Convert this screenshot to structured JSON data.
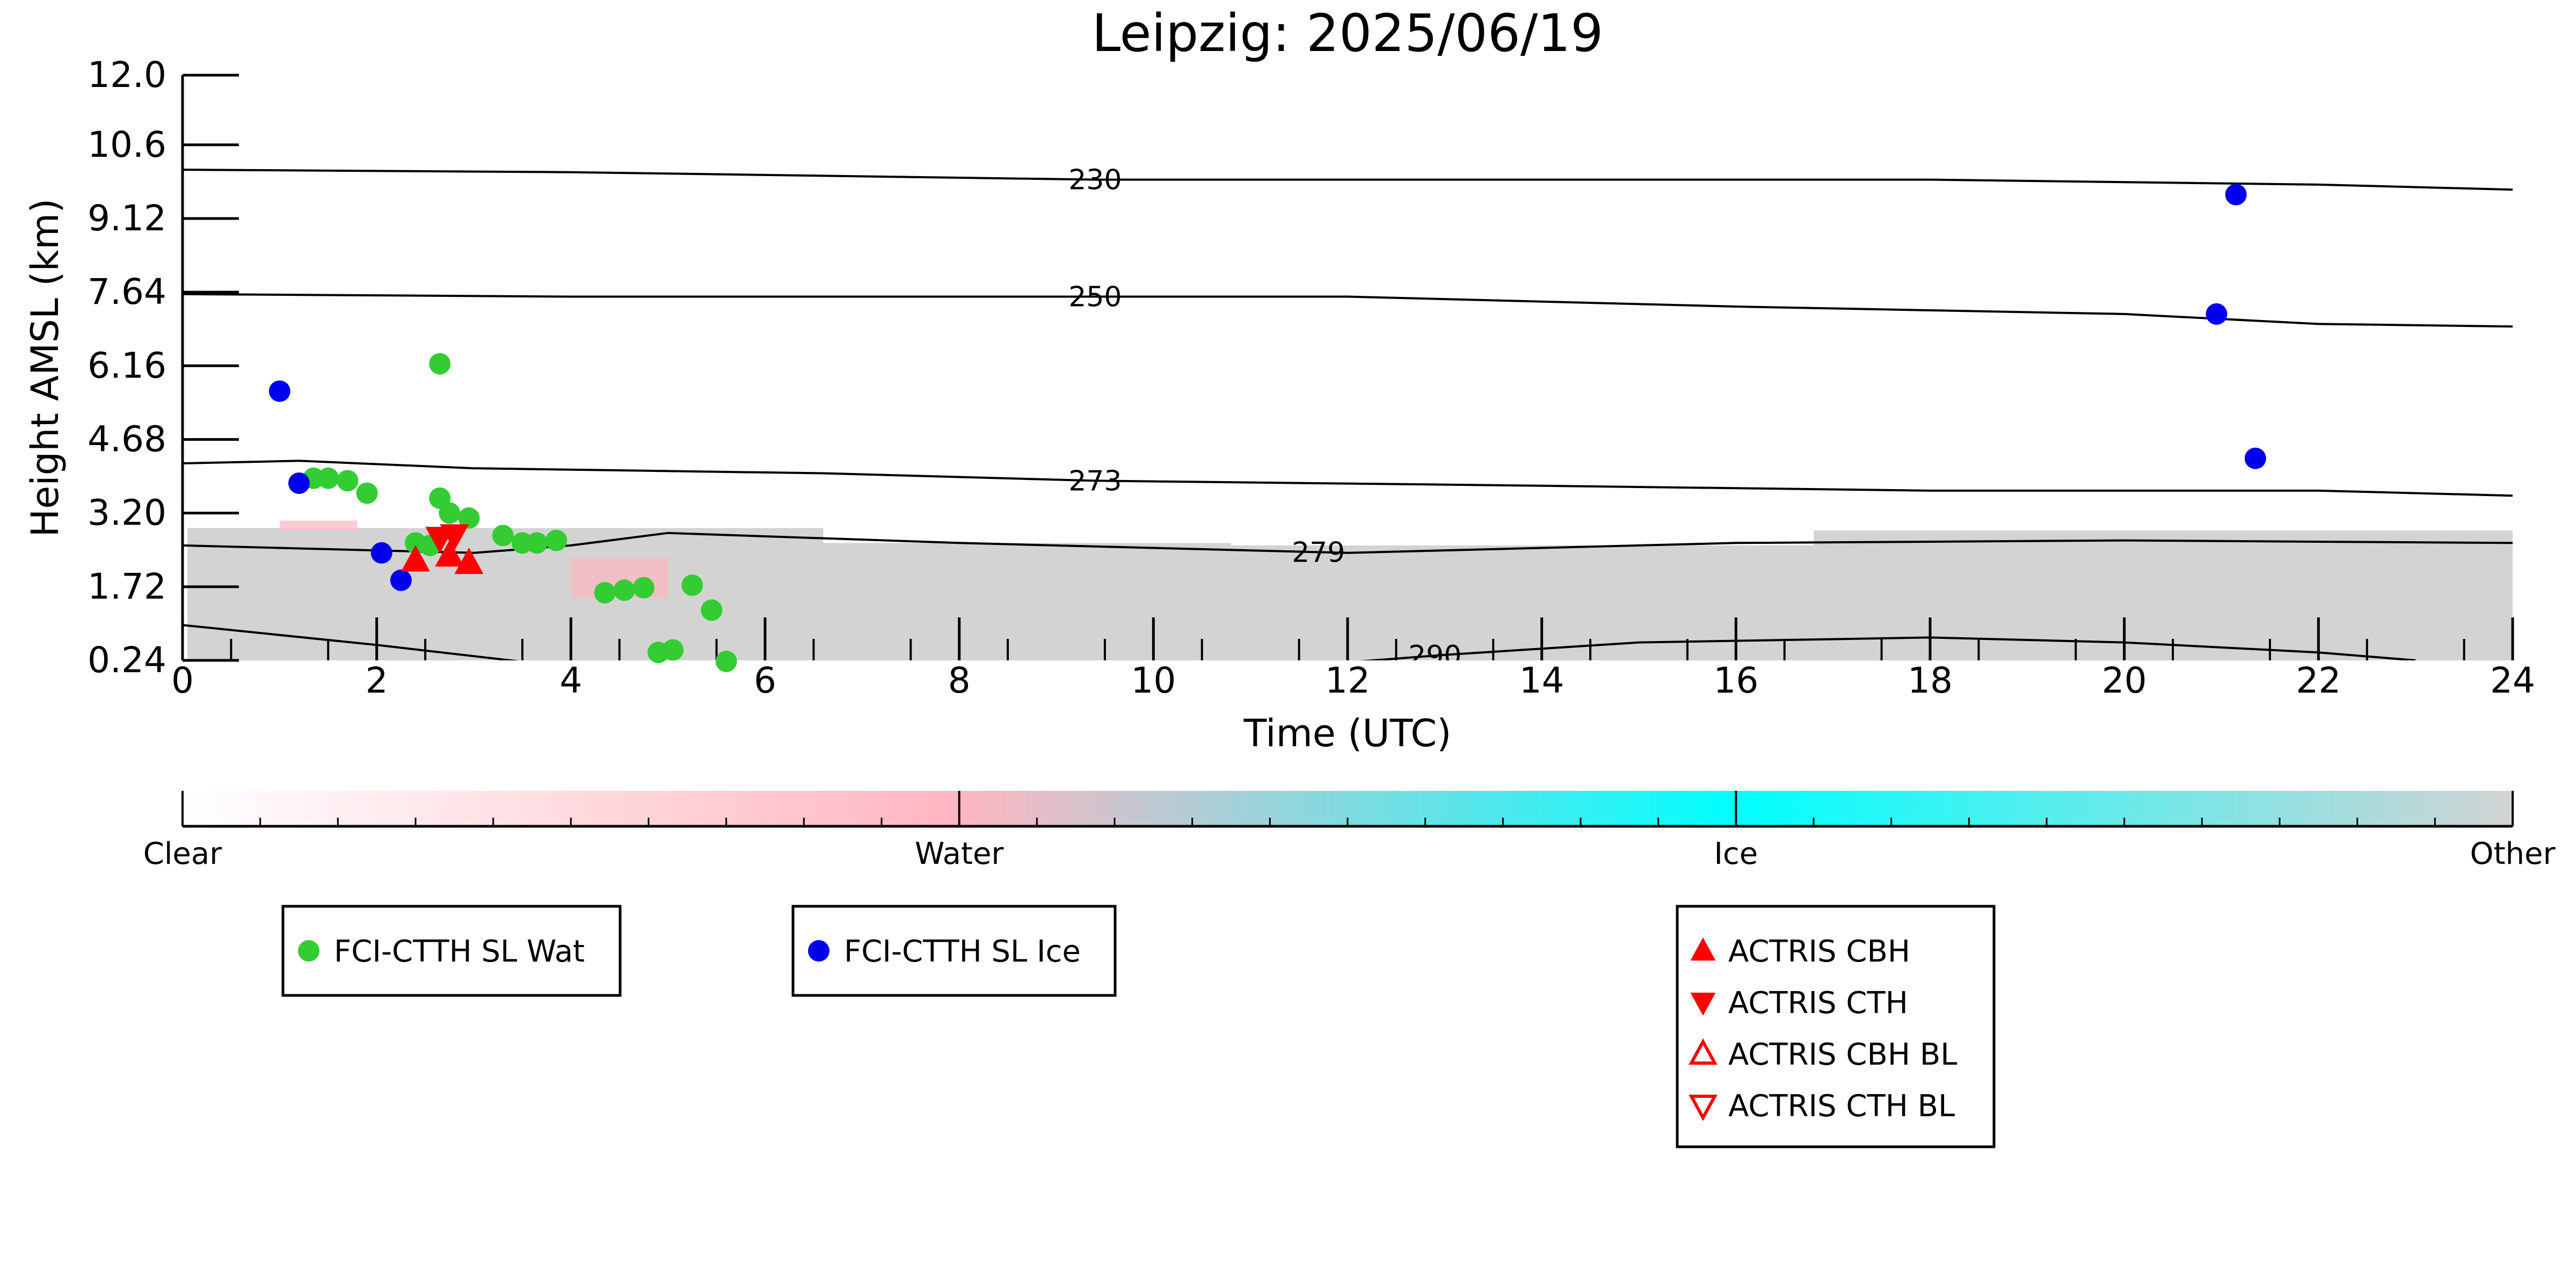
{
  "chart_data": {
    "type": "scatter",
    "title": "Leipzig: 2025/06/19",
    "xlabel": "Time (UTC)",
    "ylabel": "Height AMSL (km)",
    "xlim": [
      0,
      24
    ],
    "ylim": [
      0.24,
      12.0
    ],
    "xticks": [
      0,
      2,
      4,
      6,
      8,
      10,
      12,
      14,
      16,
      18,
      20,
      22,
      24
    ],
    "yticks": [
      0.24,
      1.72,
      3.2,
      4.68,
      6.16,
      7.64,
      9.12,
      10.6,
      12.0
    ],
    "ytick_labels": [
      "0.24",
      "1.72",
      "3.20",
      "4.68",
      "6.16",
      "7.64",
      "9.12",
      "10.6",
      "12.0"
    ],
    "temperature_contours": [
      {
        "label": "230",
        "points": [
          [
            0,
            10.1
          ],
          [
            4,
            10.05
          ],
          [
            9.4,
            9.9
          ],
          [
            14,
            9.9
          ],
          [
            18,
            9.9
          ],
          [
            22,
            9.8
          ],
          [
            24,
            9.7
          ]
        ]
      },
      {
        "label": "250",
        "points": [
          [
            0,
            7.6
          ],
          [
            4,
            7.55
          ],
          [
            9.4,
            7.55
          ],
          [
            12,
            7.55
          ],
          [
            16,
            7.35
          ],
          [
            20,
            7.2
          ],
          [
            22,
            7.0
          ],
          [
            24,
            6.95
          ]
        ]
      },
      {
        "label": "273",
        "points": [
          [
            0,
            4.2
          ],
          [
            1.2,
            4.25
          ],
          [
            3,
            4.1
          ],
          [
            6.6,
            4.0
          ],
          [
            9.4,
            3.85
          ],
          [
            14,
            3.75
          ],
          [
            18,
            3.65
          ],
          [
            22,
            3.65
          ],
          [
            24,
            3.55
          ]
        ]
      },
      {
        "label": "279",
        "points": [
          [
            0,
            2.55
          ],
          [
            2,
            2.45
          ],
          [
            3,
            2.4
          ],
          [
            4,
            2.55
          ],
          [
            5,
            2.8
          ],
          [
            8,
            2.6
          ],
          [
            12,
            2.4
          ],
          [
            16,
            2.6
          ],
          [
            20,
            2.65
          ],
          [
            24,
            2.6
          ]
        ]
      },
      {
        "label": "290",
        "points": [
          [
            0,
            0.95
          ],
          [
            2,
            0.55
          ],
          [
            4,
            0.1
          ],
          [
            10,
            0.05
          ],
          [
            12,
            0.2
          ],
          [
            13,
            0.35
          ],
          [
            15,
            0.6
          ],
          [
            18,
            0.7
          ],
          [
            20,
            0.6
          ],
          [
            22,
            0.4
          ],
          [
            23,
            0.24
          ]
        ]
      }
    ],
    "cloud_mask_other": [
      {
        "x0": 0.05,
        "x1": 6.6,
        "ytop": 2.9
      },
      {
        "x0": 6.6,
        "x1": 10.8,
        "ytop": 2.6
      },
      {
        "x0": 10.8,
        "x1": 16.8,
        "ytop": 2.55
      },
      {
        "x0": 16.8,
        "x1": 24,
        "ytop": 2.85
      }
    ],
    "colorbar": {
      "labels": [
        "Clear",
        "Water",
        "Ice",
        "Other"
      ],
      "colors": [
        "#ffffff",
        "#ffb6c1",
        "#00ffff",
        "#d3d3d3"
      ]
    },
    "series": [
      {
        "name": "FCI-CTTH SL Wat",
        "color": "#33cc33",
        "marker": "circle",
        "points": [
          [
            1.35,
            3.9
          ],
          [
            1.5,
            3.9
          ],
          [
            1.7,
            3.85
          ],
          [
            1.9,
            3.6
          ],
          [
            2.4,
            2.6
          ],
          [
            2.55,
            2.55
          ],
          [
            2.65,
            3.5
          ],
          [
            2.75,
            3.2
          ],
          [
            2.95,
            3.1
          ],
          [
            2.65,
            6.2
          ],
          [
            3.3,
            2.75
          ],
          [
            3.5,
            2.6
          ],
          [
            3.65,
            2.6
          ],
          [
            3.85,
            2.65
          ],
          [
            4.35,
            1.6
          ],
          [
            4.55,
            1.65
          ],
          [
            4.75,
            1.7
          ],
          [
            4.9,
            0.4
          ],
          [
            5.05,
            0.45
          ],
          [
            5.25,
            1.75
          ],
          [
            5.45,
            1.25
          ],
          [
            5.6,
            0.15
          ]
        ]
      },
      {
        "name": "FCI-CTTH SL Ice",
        "color": "#0000ee",
        "marker": "circle",
        "points": [
          [
            1.0,
            5.65
          ],
          [
            1.2,
            3.8
          ],
          [
            2.05,
            2.4
          ],
          [
            2.25,
            1.85
          ],
          [
            20.95,
            7.2
          ],
          [
            21.15,
            9.6
          ],
          [
            21.35,
            4.3
          ]
        ]
      },
      {
        "name": "ACTRIS CBH",
        "color": "#ff0000",
        "marker": "triangle-up",
        "points": [
          [
            2.4,
            2.25
          ],
          [
            2.75,
            2.35
          ],
          [
            2.95,
            2.2
          ]
        ]
      },
      {
        "name": "ACTRIS CTH",
        "color": "#ff0000",
        "marker": "triangle-down",
        "points": [
          [
            2.65,
            2.7
          ],
          [
            2.8,
            2.75
          ]
        ]
      },
      {
        "name": "ACTRIS CBH BL",
        "color": "#ff0000",
        "marker": "triangle-up-open",
        "points": []
      },
      {
        "name": "ACTRIS CTH BL",
        "color": "#ff0000",
        "marker": "triangle-down-open",
        "points": []
      }
    ],
    "legends": [
      {
        "entries": [
          "FCI-CTTH SL Wat"
        ]
      },
      {
        "entries": [
          "FCI-CTTH SL Ice"
        ]
      },
      {
        "entries": [
          "ACTRIS CBH",
          "ACTRIS CTH",
          "ACTRIS CBH BL",
          "ACTRIS CTH BL"
        ]
      }
    ]
  }
}
